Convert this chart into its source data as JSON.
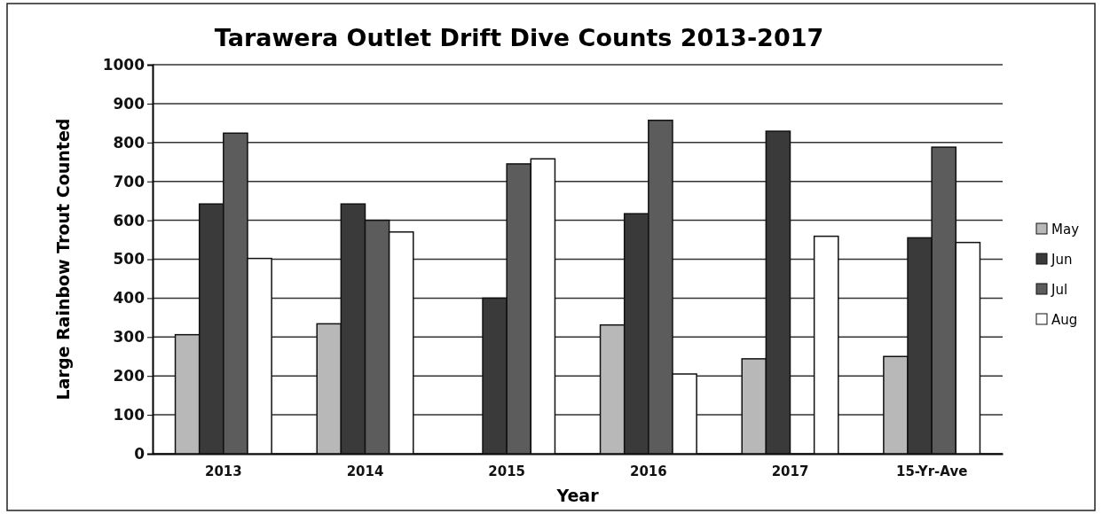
{
  "chart_data": {
    "type": "bar",
    "title": "Tarawera Outlet Drift Dive Counts 2013-2017",
    "xlabel": "Year",
    "ylabel": "Large Rainbow Trout Counted",
    "categories": [
      "2013",
      "2014",
      "2015",
      "2016",
      "2017",
      "15-Yr-Ave"
    ],
    "series": [
      {
        "name": "May",
        "color": "#b8b8b8",
        "values": [
          306,
          334,
          null,
          331,
          244,
          250
        ]
      },
      {
        "name": "Jun",
        "color": "#3a3a3a",
        "values": [
          642,
          642,
          400,
          617,
          829,
          555
        ]
      },
      {
        "name": "Jul",
        "color": "#5c5c5c",
        "values": [
          824,
          600,
          745,
          857,
          null,
          788
        ]
      },
      {
        "name": "Aug",
        "color": "#ffffff",
        "values": [
          502,
          570,
          758,
          205,
          559,
          543
        ]
      }
    ],
    "ylim": [
      0,
      1000
    ],
    "yticks": [
      0,
      100,
      200,
      300,
      400,
      500,
      600,
      700,
      800,
      900,
      1000
    ],
    "grid": "y",
    "legend": "right"
  }
}
